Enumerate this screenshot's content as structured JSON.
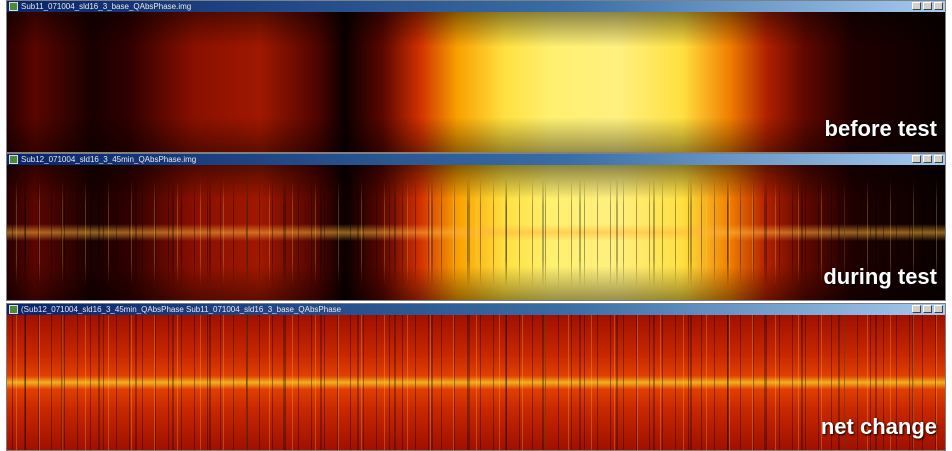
{
  "windows": [
    {
      "title": "Sub11_071004_sld16_3_base_QAbsPhase.img",
      "label": "before test"
    },
    {
      "title": "Sub12_071004_sld16_3_45min_QAbsPhase.img",
      "label": "during test"
    },
    {
      "title": "(Sub12_071004_sld16_3_45min_QAbsPhase Sub11_071004_sld16_3_base_QAbsPhase",
      "label": "net change"
    }
  ]
}
